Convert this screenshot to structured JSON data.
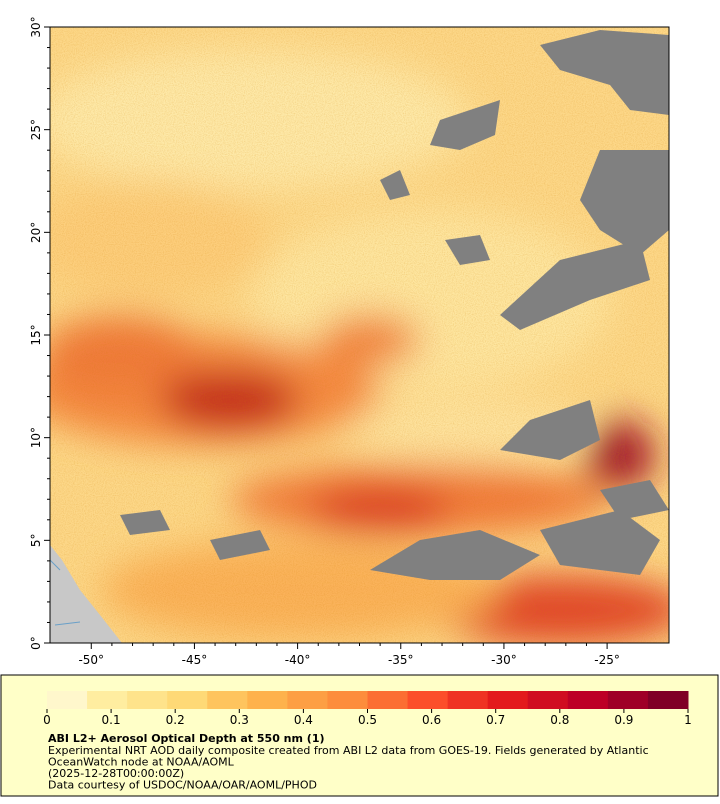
{
  "map": {
    "xlim": [
      -52,
      -22
    ],
    "ylim": [
      0,
      30
    ],
    "xticks": [
      {
        "value": -50,
        "label": "-50°"
      },
      {
        "value": -45,
        "label": "-45°"
      },
      {
        "value": -40,
        "label": "-40°"
      },
      {
        "value": -35,
        "label": "-35°"
      },
      {
        "value": -30,
        "label": "-30°"
      },
      {
        "value": -25,
        "label": "-25°"
      }
    ],
    "yticks": [
      {
        "value": 0,
        "label": "0°"
      },
      {
        "value": 5,
        "label": "5°"
      },
      {
        "value": 10,
        "label": "10°"
      },
      {
        "value": 15,
        "label": "15°"
      },
      {
        "value": 20,
        "label": "20°"
      },
      {
        "value": 25,
        "label": "25°"
      },
      {
        "value": 30,
        "label": "30°"
      }
    ]
  },
  "colorbar": {
    "range": [
      0,
      1
    ],
    "ticks": [
      0,
      0.1,
      0.2,
      0.3,
      0.4,
      0.5,
      0.6,
      0.7,
      0.8,
      0.9,
      1
    ],
    "colors": [
      "#fff7cc",
      "#ffeda0",
      "#fee38b",
      "#fed976",
      "#fec45e",
      "#feb24c",
      "#fd9f44",
      "#fd8d3c",
      "#fc6e33",
      "#fc4e2a",
      "#ef3323",
      "#e31a1c",
      "#d00d21",
      "#bd0026",
      "#9f0027",
      "#800026"
    ]
  },
  "caption": {
    "title": "ABI L2+ Aerosol Optical Depth at 550 nm (1)",
    "lines": [
      "Experimental NRT AOD daily composite created from ABI L2 data from GOES-19. Fields generated by Atlantic",
      "OceanWatch node at NOAA/AOML",
      "(2025-12-28T00:00:00Z)",
      "Data courtesy of USDOC/NOAA/OAR/AOML/PHOD"
    ]
  }
}
